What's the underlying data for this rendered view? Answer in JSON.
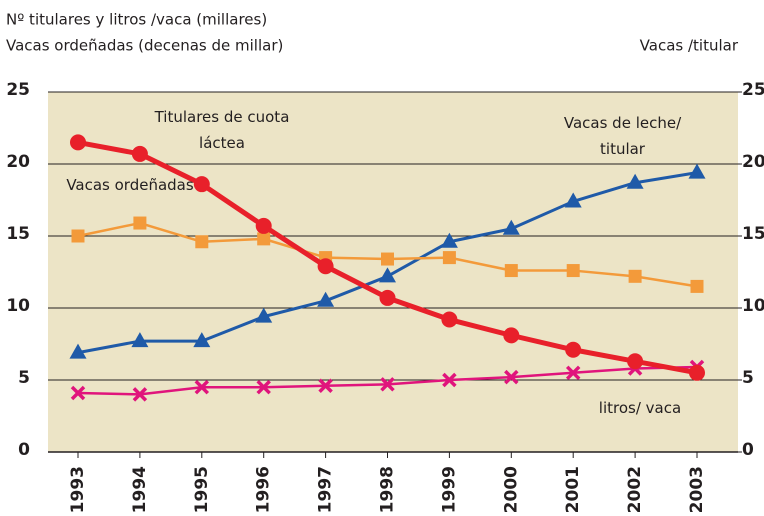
{
  "chart_data": {
    "type": "line",
    "ylabel": [
      "Nº titulares y litros /vaca (millares)",
      "Vacas ordeñadas (decenas de millar)"
    ],
    "y2label": "Vacas /titular",
    "categories": [
      "1993",
      "1994",
      "1995",
      "1996",
      "1997",
      "1998",
      "1999",
      "2000",
      "2001",
      "2002",
      "2003"
    ],
    "ylim": [
      0,
      25
    ],
    "yticks": [
      0,
      5,
      10,
      15,
      20,
      25
    ],
    "y2lim": [
      0,
      25
    ],
    "y2ticks": [
      0,
      5,
      10,
      15,
      20,
      25
    ],
    "grid": true,
    "series": [
      {
        "name": "Titulares de cuota láctea",
        "color": "#e8202a",
        "marker": "circle",
        "values": [
          21.5,
          20.7,
          18.6,
          15.7,
          12.9,
          10.7,
          9.2,
          8.1,
          7.1,
          6.3,
          5.5
        ]
      },
      {
        "name": "Vacas ordeñadas",
        "color": "#f39a3a",
        "marker": "square",
        "values": [
          15.0,
          15.9,
          14.6,
          14.8,
          13.5,
          13.4,
          13.5,
          12.6,
          12.6,
          12.2,
          11.5
        ]
      },
      {
        "name": "Vacas de leche/ titular",
        "color": "#1f5aa8",
        "marker": "triangle",
        "axis": "y2",
        "values": [
          6.9,
          7.7,
          7.7,
          9.4,
          10.5,
          12.2,
          14.6,
          15.5,
          17.4,
          18.7,
          19.4
        ]
      },
      {
        "name": "litros/ vaca",
        "color": "#e0147c",
        "marker": "x",
        "values": [
          4.1,
          4.0,
          4.5,
          4.5,
          4.6,
          4.7,
          5.0,
          5.2,
          5.5,
          5.8,
          5.9
        ]
      }
    ]
  }
}
